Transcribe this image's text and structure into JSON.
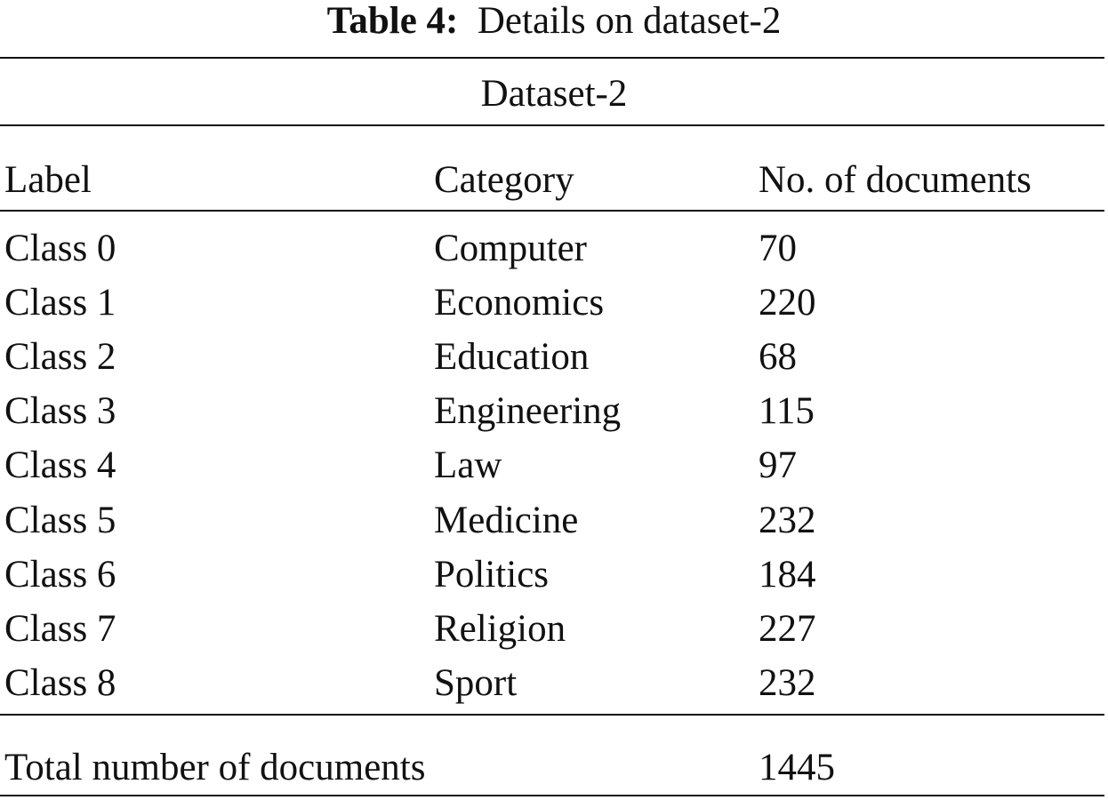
{
  "caption": {
    "label": "Table 4:",
    "text": "Details on dataset-2"
  },
  "group_header": "Dataset-2",
  "columns": [
    "Label",
    "Category",
    "No. of documents"
  ],
  "rows": [
    [
      "Class 0",
      "Computer",
      "70"
    ],
    [
      "Class 1",
      "Economics",
      "220"
    ],
    [
      "Class 2",
      "Education",
      "68"
    ],
    [
      "Class 3",
      "Engineering",
      "115"
    ],
    [
      "Class 4",
      "Law",
      "97"
    ],
    [
      "Class 5",
      "Medicine",
      "232"
    ],
    [
      "Class 6",
      "Politics",
      "184"
    ],
    [
      "Class 7",
      "Religion",
      "227"
    ],
    [
      "Class 8",
      "Sport",
      "232"
    ]
  ],
  "total": {
    "label": "Total number of documents",
    "value": "1445"
  }
}
